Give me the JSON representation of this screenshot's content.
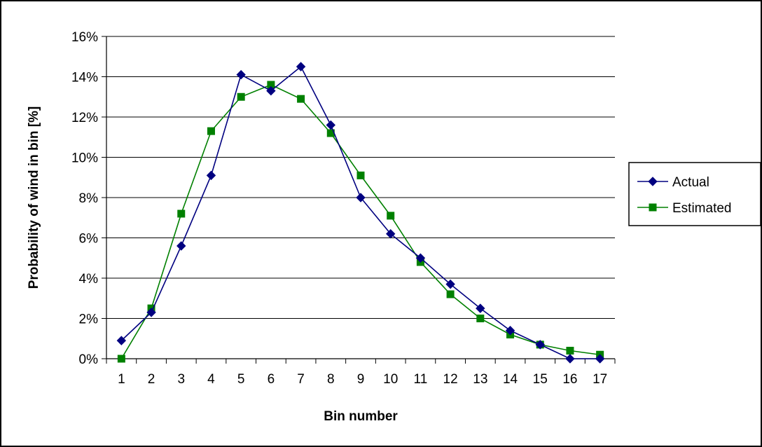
{
  "chart_data": {
    "type": "line",
    "title": "",
    "xlabel": "Bin number",
    "ylabel": "Probability of wind in bin [%]",
    "categories": [
      "1",
      "2",
      "3",
      "4",
      "5",
      "6",
      "7",
      "8",
      "9",
      "10",
      "11",
      "12",
      "13",
      "14",
      "15",
      "16",
      "17"
    ],
    "y_ticks": [
      "0%",
      "2%",
      "4%",
      "6%",
      "8%",
      "10%",
      "12%",
      "14%",
      "16%"
    ],
    "ylim": [
      0,
      16
    ],
    "grid": "horizontal",
    "legend_position": "right",
    "series": [
      {
        "name": "Actual",
        "color": "#000080",
        "marker": "diamond",
        "values": [
          0.9,
          2.3,
          5.6,
          9.1,
          14.1,
          13.3,
          14.5,
          11.6,
          8.0,
          6.2,
          5.0,
          3.7,
          2.5,
          1.4,
          0.7,
          0.0,
          0.0
        ]
      },
      {
        "name": "Estimated",
        "color": "#008000",
        "marker": "square",
        "values": [
          0.0,
          2.5,
          7.2,
          11.3,
          13.0,
          13.6,
          12.9,
          11.2,
          9.1,
          7.1,
          4.8,
          3.2,
          2.0,
          1.2,
          0.7,
          0.4,
          0.2
        ]
      }
    ]
  }
}
